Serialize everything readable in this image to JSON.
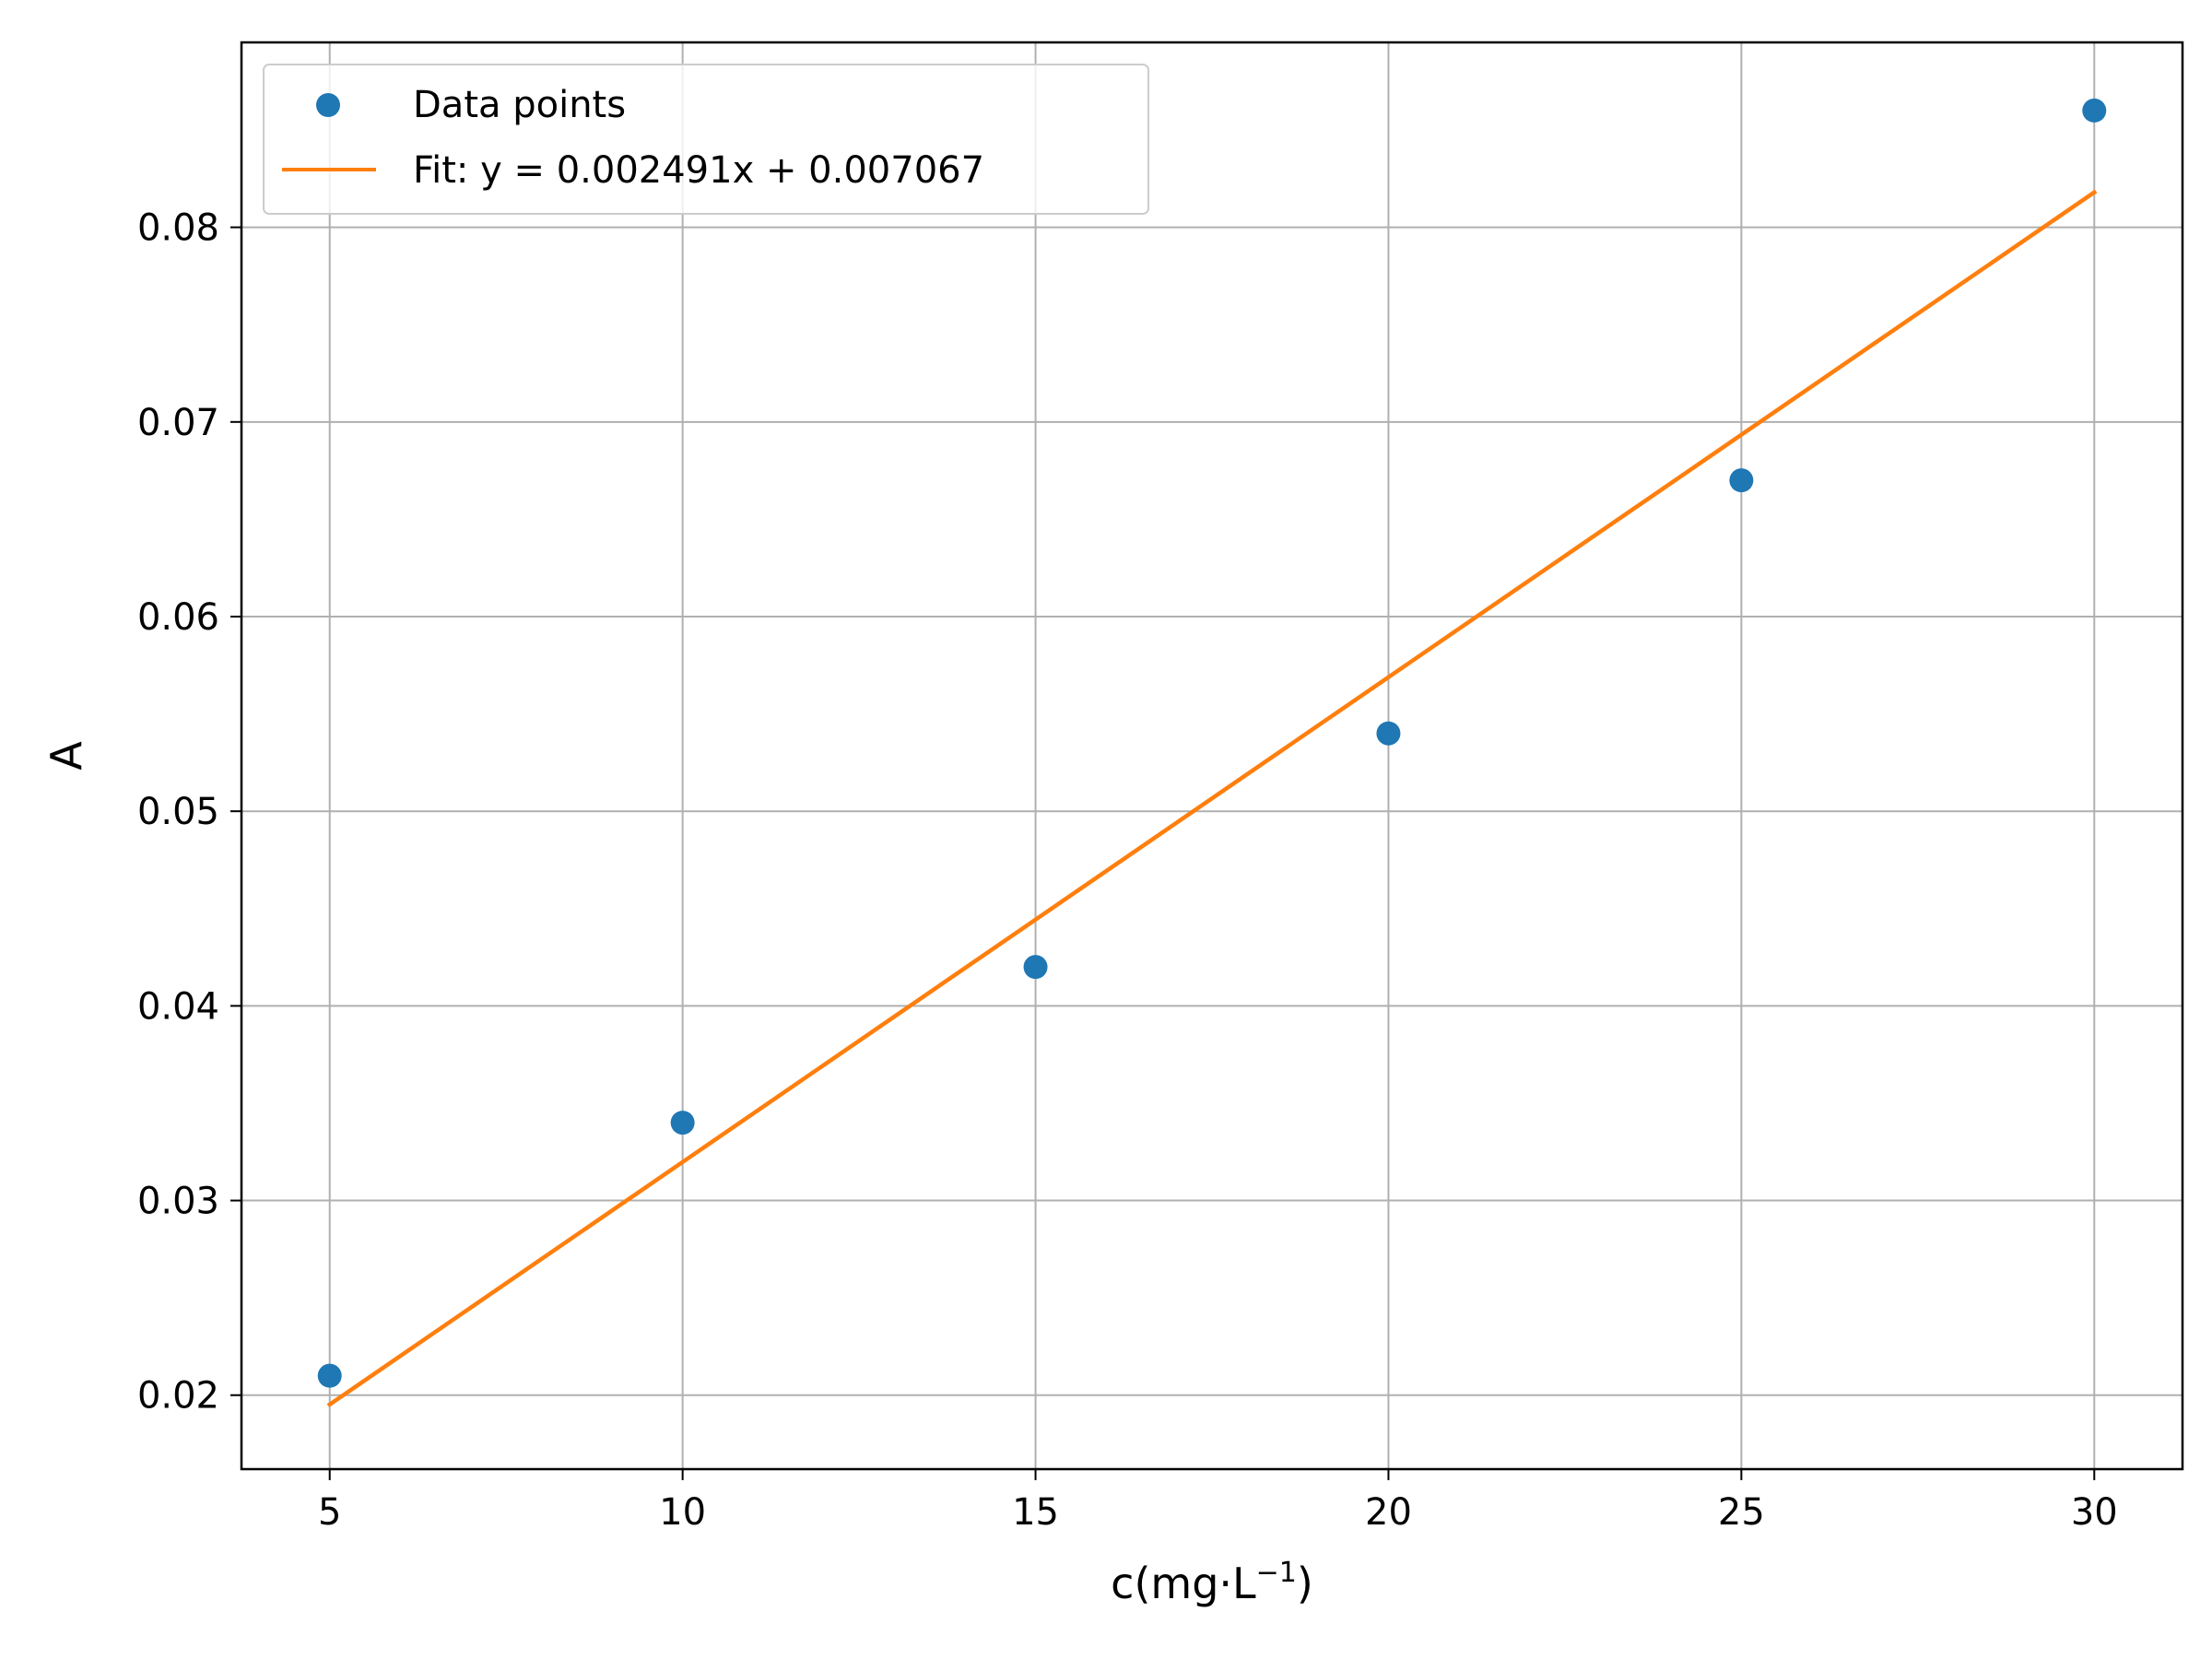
{
  "chart_data": {
    "type": "scatter",
    "title": "",
    "xlabel_main": "c(mg·L",
    "xlabel_sup": "−1",
    "xlabel_close": ")",
    "ylabel": "A",
    "xlim": [
      3.75,
      31.25
    ],
    "ylim": [
      0.0162,
      0.0895
    ],
    "xticks": [
      5,
      10,
      15,
      20,
      25,
      30
    ],
    "xtick_labels": [
      "5",
      "10",
      "15",
      "20",
      "25",
      "30"
    ],
    "yticks": [
      0.02,
      0.03,
      0.04,
      0.05,
      0.06,
      0.07,
      0.08
    ],
    "ytick_labels": [
      "0.02",
      "0.03",
      "0.04",
      "0.05",
      "0.06",
      "0.07",
      "0.08"
    ],
    "grid": true,
    "legend_position": "top-left",
    "series": [
      {
        "name": "Data points",
        "kind": "scatter",
        "color": "#1f77b4",
        "x": [
          5,
          10,
          15,
          20,
          25,
          30
        ],
        "y": [
          0.021,
          0.034,
          0.042,
          0.054,
          0.067,
          0.086
        ]
      },
      {
        "name": "Fit: y = 0.002491x + 0.007067",
        "kind": "line",
        "color": "#ff7f0e",
        "slope": 0.002491,
        "intercept": 0.007067,
        "x_range": [
          5,
          30
        ]
      }
    ]
  }
}
